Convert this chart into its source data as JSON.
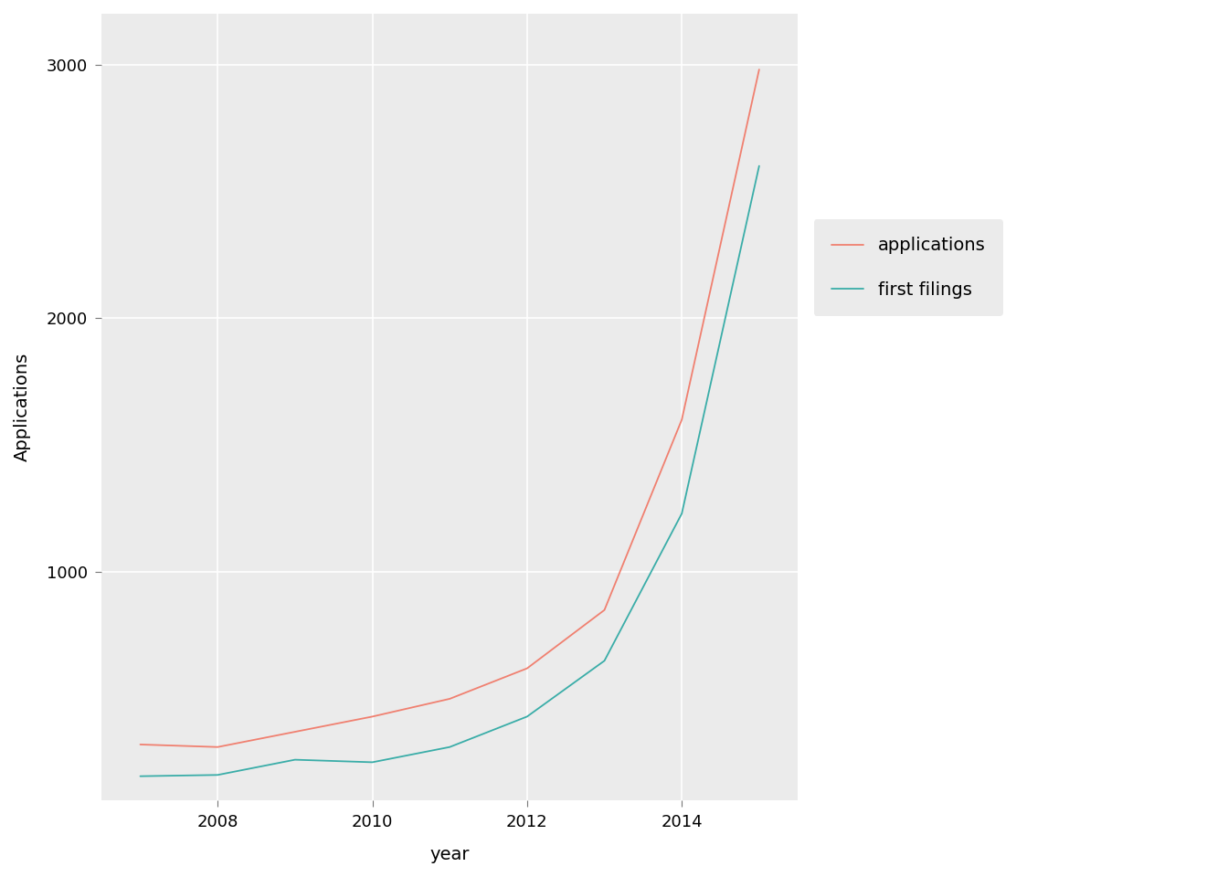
{
  "years": [
    2007,
    2008,
    2009,
    2010,
    2011,
    2012,
    2013,
    2014,
    2015
  ],
  "applications": [
    320,
    310,
    370,
    430,
    500,
    620,
    850,
    1600,
    2980
  ],
  "first_filings": [
    195,
    200,
    260,
    250,
    310,
    430,
    650,
    1230,
    2600
  ],
  "app_color": "#F08070",
  "filings_color": "#3AADA8",
  "panel_color": "#EBEBEB",
  "grid_color": "#FFFFFF",
  "xlabel": "year",
  "ylabel": "Applications",
  "legend_labels": [
    "applications",
    "first filings"
  ],
  "ylim": [
    100,
    3200
  ],
  "xlim": [
    2006.5,
    2015.5
  ],
  "yticks": [
    1000,
    2000,
    3000
  ],
  "xticks": [
    2008,
    2010,
    2012,
    2014
  ],
  "line_width": 1.3,
  "label_fontsize": 14,
  "tick_fontsize": 13,
  "legend_fontsize": 14
}
